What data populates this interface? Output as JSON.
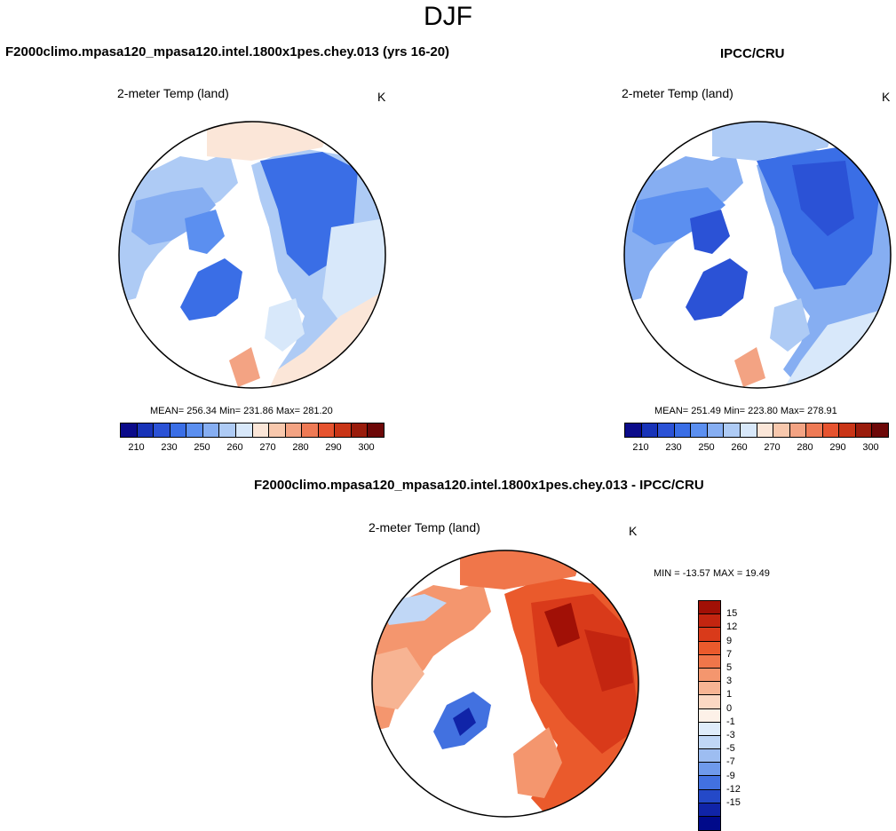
{
  "page_title": "DJF",
  "units": "K",
  "variable": "2-meter Temp (land)",
  "panels": {
    "model": {
      "title": "F2000climo.mpasa120_mpasa120.intel.1800x1pes.chey.013 (yrs 16-20)",
      "stats": "MEAN= 256.34  Min= 231.86  Max= 281.20"
    },
    "obs": {
      "title": "IPCC/CRU",
      "stats": "MEAN= 251.49  Min= 223.80  Max= 278.91"
    },
    "diff": {
      "title": "F2000climo.mpasa120_mpasa120.intel.1800x1pes.chey.013 - IPCC/CRU",
      "stats": "MIN = -13.57 MAX =  19.49"
    }
  },
  "colorbar_abs": {
    "colors": [
      "#0b0b8a",
      "#1833b8",
      "#2b52d6",
      "#3a6ee6",
      "#5b8ff0",
      "#86aef2",
      "#aecbf5",
      "#d8e8fa",
      "#fbe6d8",
      "#f8c8ad",
      "#f3a383",
      "#ee7a55",
      "#e6532f",
      "#c93517",
      "#9a1c0c",
      "#6d0808"
    ],
    "tick_labels": [
      "210",
      "230",
      "250",
      "260",
      "270",
      "280",
      "290",
      "300"
    ]
  },
  "colorbar_diff": {
    "colors": [
      "#a11006",
      "#c32510",
      "#d93a1a",
      "#ea5a2c",
      "#f0764a",
      "#f4966e",
      "#f7b493",
      "#fbd8c3",
      "#fdf1e8",
      "#dfecfa",
      "#c0d7f6",
      "#9dbdf1",
      "#6f9aeb",
      "#4271e0",
      "#2449c8",
      "#1024a8",
      "#000a8a"
    ],
    "tick_labels": [
      "15",
      "12",
      "9",
      "7",
      "5",
      "3",
      "1",
      "0",
      "-1",
      "-3",
      "-5",
      "-7",
      "-9",
      "-12",
      "-15"
    ]
  },
  "chart_data": [
    {
      "type": "heatmap",
      "projection": "north-polar-stereographic",
      "title": "F2000climo.mpasa120_mpasa120.intel.1800x1pes.chey.013 (yrs 16-20)",
      "variable": "2-meter Temp (land)",
      "units": "K",
      "mean": 256.34,
      "min": 231.86,
      "max": 281.2,
      "colorbar_levels": [
        210,
        230,
        250,
        260,
        270,
        280,
        290,
        300
      ]
    },
    {
      "type": "heatmap",
      "projection": "north-polar-stereographic",
      "title": "IPCC/CRU",
      "variable": "2-meter Temp (land)",
      "units": "K",
      "mean": 251.49,
      "min": 223.8,
      "max": 278.91,
      "colorbar_levels": [
        210,
        230,
        250,
        260,
        270,
        280,
        290,
        300
      ]
    },
    {
      "type": "heatmap",
      "projection": "north-polar-stereographic",
      "title": "F2000climo.mpasa120_mpasa120.intel.1800x1pes.chey.013 - IPCC/CRU",
      "variable": "2-meter Temp (land)",
      "units": "K",
      "min": -13.57,
      "max": 19.49,
      "colorbar_levels": [
        15,
        12,
        9,
        7,
        5,
        3,
        1,
        0,
        -1,
        -3,
        -5,
        -7,
        -9,
        -12,
        -15
      ]
    }
  ]
}
